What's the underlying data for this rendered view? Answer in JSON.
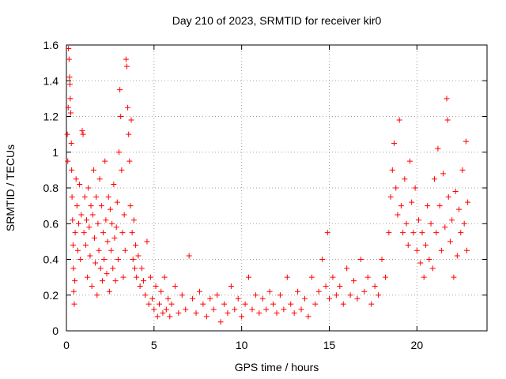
{
  "chart_data": {
    "type": "scatter",
    "title": "Day 210 of 2023, SRMTID for receiver kir0",
    "xlabel": "GPS time / hours",
    "ylabel": "SRMTID / TECUs",
    "xlim": [
      0,
      24
    ],
    "ylim": [
      0,
      1.6
    ],
    "xticks": [
      0,
      5,
      10,
      15,
      20
    ],
    "xtick_labels": [
      "0",
      "5",
      "10",
      "15",
      "20"
    ],
    "yticks": [
      0,
      0.2,
      0.4,
      0.6,
      0.8,
      1,
      1.2,
      1.4,
      1.6
    ],
    "ytick_labels": [
      "0",
      "0.2",
      "0.4",
      "0.6",
      "0.8",
      "1",
      "1.2",
      "1.4",
      "1.6"
    ],
    "grid": true,
    "marker": "+",
    "color": "#ff0000",
    "series": [
      {
        "name": "SRMTID",
        "points": [
          [
            0.05,
            1.1
          ],
          [
            0.08,
            0.95
          ],
          [
            0.1,
            1.25
          ],
          [
            0.12,
            1.58
          ],
          [
            0.15,
            1.52
          ],
          [
            0.18,
            1.42
          ],
          [
            0.2,
            1.38
          ],
          [
            0.22,
            1.3
          ],
          [
            0.25,
            1.22
          ],
          [
            0.28,
            1.05
          ],
          [
            0.3,
            0.9
          ],
          [
            0.32,
            0.75
          ],
          [
            0.35,
            0.62
          ],
          [
            0.38,
            0.48
          ],
          [
            0.4,
            0.35
          ],
          [
            0.42,
            0.22
          ],
          [
            0.45,
            0.15
          ],
          [
            0.48,
            0.28
          ],
          [
            0.5,
            0.55
          ],
          [
            0.55,
            0.85
          ],
          [
            0.6,
            0.7
          ],
          [
            0.65,
            0.45
          ],
          [
            0.7,
            0.6
          ],
          [
            0.75,
            0.82
          ],
          [
            0.8,
            0.4
          ],
          [
            0.85,
            0.65
          ],
          [
            0.9,
            1.12
          ],
          [
            0.95,
            1.1
          ],
          [
            1.0,
            0.55
          ],
          [
            1.05,
            0.75
          ],
          [
            1.1,
            0.48
          ],
          [
            1.15,
            0.62
          ],
          [
            1.2,
            0.3
          ],
          [
            1.25,
            0.8
          ],
          [
            1.3,
            0.58
          ],
          [
            1.35,
            0.42
          ],
          [
            1.4,
            0.7
          ],
          [
            1.45,
            0.25
          ],
          [
            1.5,
            0.65
          ],
          [
            1.55,
            0.9
          ],
          [
            1.6,
            0.52
          ],
          [
            1.65,
            0.38
          ],
          [
            1.7,
            0.75
          ],
          [
            1.75,
            0.2
          ],
          [
            1.8,
            0.6
          ],
          [
            1.85,
            0.45
          ],
          [
            1.9,
            0.85
          ],
          [
            1.95,
            0.35
          ],
          [
            2.0,
            0.7
          ],
          [
            2.05,
            0.28
          ],
          [
            2.1,
            0.55
          ],
          [
            2.15,
            0.4
          ],
          [
            2.2,
            0.95
          ],
          [
            2.25,
            0.62
          ],
          [
            2.3,
            0.32
          ],
          [
            2.35,
            0.5
          ],
          [
            2.4,
            0.75
          ],
          [
            2.45,
            0.22
          ],
          [
            2.5,
            0.68
          ],
          [
            2.55,
            0.45
          ],
          [
            2.6,
            0.6
          ],
          [
            2.65,
            0.35
          ],
          [
            2.7,
            0.82
          ],
          [
            2.75,
            0.52
          ],
          [
            2.8,
            0.28
          ],
          [
            2.85,
            0.58
          ],
          [
            2.9,
            0.72
          ],
          [
            2.95,
            0.4
          ],
          [
            3.0,
            1.0
          ],
          [
            3.05,
            1.35
          ],
          [
            3.1,
            1.2
          ],
          [
            3.15,
            0.9
          ],
          [
            3.2,
            0.55
          ],
          [
            3.25,
            0.3
          ],
          [
            3.3,
            0.65
          ],
          [
            3.35,
            0.45
          ],
          [
            3.4,
            1.52
          ],
          [
            3.45,
            1.48
          ],
          [
            3.5,
            1.25
          ],
          [
            3.55,
            1.1
          ],
          [
            3.6,
            0.95
          ],
          [
            3.65,
            0.7
          ],
          [
            3.7,
            1.18
          ],
          [
            3.75,
            0.55
          ],
          [
            3.8,
            0.4
          ],
          [
            3.85,
            0.62
          ],
          [
            3.9,
            0.35
          ],
          [
            3.95,
            0.48
          ],
          [
            4.0,
            0.3
          ],
          [
            4.1,
            0.42
          ],
          [
            4.2,
            0.25
          ],
          [
            4.3,
            0.35
          ],
          [
            4.4,
            0.28
          ],
          [
            4.5,
            0.2
          ],
          [
            4.6,
            0.5
          ],
          [
            4.7,
            0.15
          ],
          [
            4.8,
            0.3
          ],
          [
            4.9,
            0.18
          ],
          [
            5.0,
            0.12
          ],
          [
            5.1,
            0.25
          ],
          [
            5.2,
            0.08
          ],
          [
            5.3,
            0.15
          ],
          [
            5.4,
            0.22
          ],
          [
            5.5,
            0.1
          ],
          [
            5.6,
            0.3
          ],
          [
            5.7,
            0.12
          ],
          [
            5.8,
            0.18
          ],
          [
            5.9,
            0.08
          ],
          [
            6.0,
            0.15
          ],
          [
            6.2,
            0.25
          ],
          [
            6.4,
            0.1
          ],
          [
            6.6,
            0.2
          ],
          [
            6.8,
            0.12
          ],
          [
            7.0,
            0.42
          ],
          [
            7.2,
            0.18
          ],
          [
            7.4,
            0.1
          ],
          [
            7.6,
            0.22
          ],
          [
            7.8,
            0.15
          ],
          [
            8.0,
            0.08
          ],
          [
            8.2,
            0.18
          ],
          [
            8.4,
            0.12
          ],
          [
            8.6,
            0.2
          ],
          [
            8.8,
            0.05
          ],
          [
            9.0,
            0.15
          ],
          [
            9.2,
            0.1
          ],
          [
            9.4,
            0.25
          ],
          [
            9.6,
            0.12
          ],
          [
            9.8,
            0.18
          ],
          [
            10.0,
            0.08
          ],
          [
            10.2,
            0.15
          ],
          [
            10.4,
            0.3
          ],
          [
            10.6,
            0.12
          ],
          [
            10.8,
            0.2
          ],
          [
            11.0,
            0.1
          ],
          [
            11.2,
            0.18
          ],
          [
            11.4,
            0.12
          ],
          [
            11.6,
            0.22
          ],
          [
            11.8,
            0.15
          ],
          [
            12.0,
            0.1
          ],
          [
            12.2,
            0.2
          ],
          [
            12.4,
            0.12
          ],
          [
            12.6,
            0.3
          ],
          [
            12.8,
            0.15
          ],
          [
            13.0,
            0.1
          ],
          [
            13.2,
            0.22
          ],
          [
            13.4,
            0.12
          ],
          [
            13.6,
            0.18
          ],
          [
            13.8,
            0.08
          ],
          [
            14.0,
            0.3
          ],
          [
            14.2,
            0.15
          ],
          [
            14.4,
            0.22
          ],
          [
            14.6,
            0.4
          ],
          [
            14.8,
            0.25
          ],
          [
            14.9,
            0.55
          ],
          [
            15.0,
            0.18
          ],
          [
            15.2,
            0.3
          ],
          [
            15.4,
            0.2
          ],
          [
            15.6,
            0.25
          ],
          [
            15.8,
            0.15
          ],
          [
            16.0,
            0.35
          ],
          [
            16.2,
            0.2
          ],
          [
            16.4,
            0.28
          ],
          [
            16.6,
            0.18
          ],
          [
            16.8,
            0.4
          ],
          [
            17.0,
            0.22
          ],
          [
            17.2,
            0.3
          ],
          [
            17.4,
            0.15
          ],
          [
            17.6,
            0.25
          ],
          [
            17.8,
            0.2
          ],
          [
            18.0,
            0.4
          ],
          [
            18.2,
            0.3
          ],
          [
            18.4,
            0.55
          ],
          [
            18.5,
            0.75
          ],
          [
            18.6,
            0.9
          ],
          [
            18.7,
            1.05
          ],
          [
            18.8,
            0.8
          ],
          [
            18.9,
            0.65
          ],
          [
            19.0,
            1.18
          ],
          [
            19.1,
            0.7
          ],
          [
            19.2,
            0.55
          ],
          [
            19.3,
            0.85
          ],
          [
            19.4,
            0.6
          ],
          [
            19.5,
            0.48
          ],
          [
            19.6,
            0.95
          ],
          [
            19.7,
            0.72
          ],
          [
            19.8,
            0.55
          ],
          [
            19.9,
            0.8
          ],
          [
            20.0,
            0.45
          ],
          [
            20.1,
            0.62
          ],
          [
            20.2,
            0.38
          ],
          [
            20.3,
            0.55
          ],
          [
            20.4,
            0.3
          ],
          [
            20.5,
            0.48
          ],
          [
            20.6,
            0.7
          ],
          [
            20.7,
            0.4
          ],
          [
            20.8,
            0.6
          ],
          [
            20.9,
            0.35
          ],
          [
            21.0,
            0.85
          ],
          [
            21.1,
            0.55
          ],
          [
            21.2,
            1.02
          ],
          [
            21.3,
            0.7
          ],
          [
            21.4,
            0.45
          ],
          [
            21.5,
            0.88
          ],
          [
            21.6,
            0.58
          ],
          [
            21.7,
            1.3
          ],
          [
            21.75,
            1.18
          ],
          [
            21.8,
            0.75
          ],
          [
            21.9,
            0.5
          ],
          [
            22.0,
            0.62
          ],
          [
            22.1,
            0.3
          ],
          [
            22.2,
            0.78
          ],
          [
            22.3,
            0.42
          ],
          [
            22.4,
            0.68
          ],
          [
            22.5,
            0.55
          ],
          [
            22.6,
            0.9
          ],
          [
            22.7,
            0.6
          ],
          [
            22.8,
            1.06
          ],
          [
            22.85,
            0.45
          ],
          [
            22.9,
            0.72
          ]
        ]
      }
    ]
  }
}
